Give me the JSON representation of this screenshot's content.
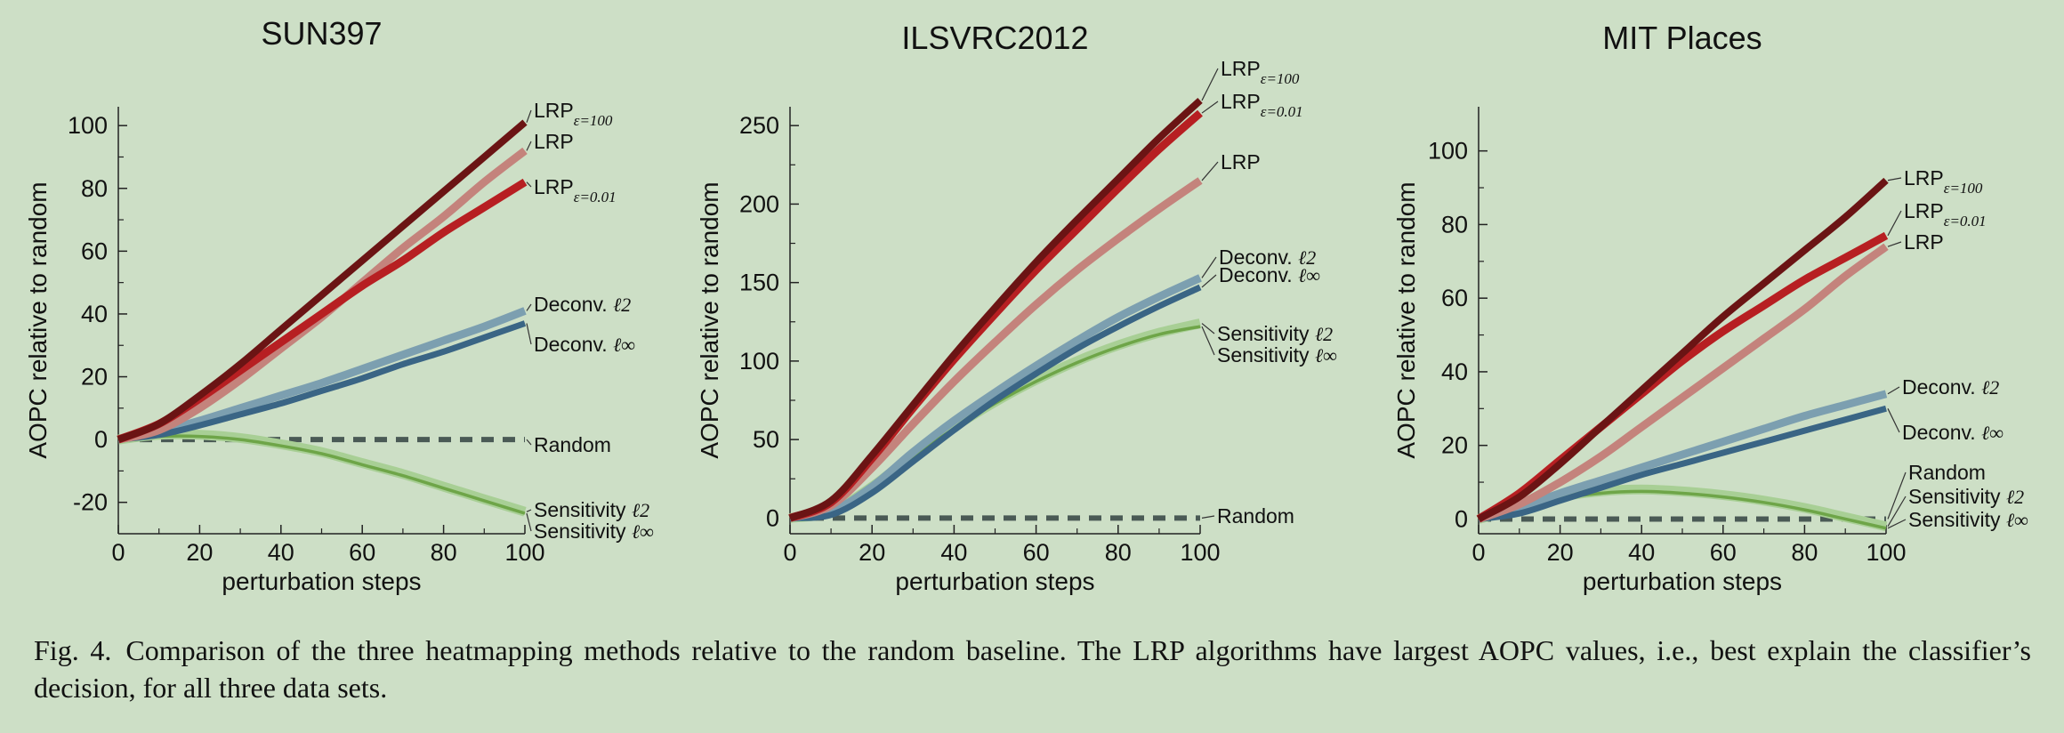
{
  "colors": {
    "lrp100": "#6b1414",
    "lrp001": "#b71f22",
    "lrp": "#c4837c",
    "deconv_l2": "#7c9fb0",
    "deconv_linf": "#3a6585",
    "sens_l2": "#a8cf95",
    "sens_linf": "#6ea548",
    "random": "#4a5a55"
  },
  "caption": {
    "figno": "Fig. 4.",
    "text": "Comparison of the three heatmapping methods relative to the random baseline. The LRP algorithms have largest AOPC values, i.e., best explain the classifier’s decision, for all three data sets."
  },
  "chart_data": [
    {
      "type": "line",
      "title": "SUN397",
      "xlabel": "perturbation steps",
      "ylabel": "AOPC relative to random",
      "xlim": [
        0,
        100
      ],
      "ylim": [
        -30,
        106
      ],
      "xticks": [
        "0",
        "20",
        "40",
        "60",
        "80",
        "100"
      ],
      "yticks": [
        "-20",
        "0",
        "20",
        "40",
        "60",
        "80",
        "100"
      ],
      "series": [
        {
          "key": "random",
          "name": "Random",
          "label": "Random",
          "x": [
            0,
            20,
            40,
            60,
            80,
            100
          ],
          "values": [
            0,
            0,
            0,
            0,
            0,
            0
          ],
          "dashed": true
        },
        {
          "key": "sens_l2",
          "name": "Sensitivity ℓ2",
          "label": "Sensitivity",
          "sub": "ℓ2",
          "x": [
            0,
            10,
            20,
            30,
            40,
            50,
            60,
            70,
            80,
            90,
            100
          ],
          "values": [
            0,
            1.5,
            1.5,
            0.5,
            -1.5,
            -4,
            -7.5,
            -11,
            -15,
            -19,
            -23
          ]
        },
        {
          "key": "sens_linf",
          "name": "Sensitivity ℓ∞",
          "label": "Sensitivity",
          "sub": "ℓ∞",
          "x": [
            0,
            10,
            20,
            30,
            40,
            50,
            60,
            70,
            80,
            90,
            100
          ],
          "values": [
            0,
            1,
            1,
            0,
            -2,
            -4.5,
            -8,
            -11.5,
            -15.5,
            -19.5,
            -23.5
          ]
        },
        {
          "key": "deconv_l2",
          "name": "Deconv. ℓ2",
          "label": "Deconv.",
          "sub": "ℓ2",
          "x": [
            0,
            10,
            20,
            30,
            40,
            50,
            60,
            70,
            80,
            90,
            100
          ],
          "values": [
            0,
            2.5,
            6,
            10,
            14,
            18,
            22.5,
            27,
            31.5,
            36,
            41
          ]
        },
        {
          "key": "deconv_linf",
          "name": "Deconv. ℓ∞",
          "label": "Deconv.",
          "sub": "ℓ∞",
          "x": [
            0,
            10,
            20,
            30,
            40,
            50,
            60,
            70,
            80,
            90,
            100
          ],
          "values": [
            0,
            1.5,
            4.5,
            8,
            11.5,
            15.5,
            19.5,
            24,
            28,
            32.5,
            37
          ]
        },
        {
          "key": "lrp001",
          "name": "LRP ε=0.01",
          "label": "LRP",
          "sub": "ε=0.01",
          "x": [
            0,
            10,
            20,
            30,
            40,
            50,
            60,
            70,
            80,
            90,
            100
          ],
          "values": [
            0,
            5,
            13,
            22,
            31,
            40,
            49,
            57,
            66,
            74,
            82
          ]
        },
        {
          "key": "lrp",
          "name": "LRP",
          "label": "LRP",
          "x": [
            0,
            10,
            20,
            30,
            40,
            50,
            60,
            70,
            80,
            90,
            100
          ],
          "values": [
            0,
            3,
            10,
            19,
            29,
            39,
            50,
            61,
            71,
            82,
            92
          ]
        },
        {
          "key": "lrp100",
          "name": "LRP ε=100",
          "label": "LRP",
          "sub": "ε=100",
          "x": [
            0,
            10,
            20,
            30,
            40,
            50,
            60,
            70,
            80,
            90,
            100
          ],
          "values": [
            0,
            5,
            14,
            24,
            35,
            46,
            57,
            68,
            79,
            90,
            101
          ]
        }
      ]
    },
    {
      "type": "line",
      "title": "ILSVRC2012",
      "xlabel": "perturbation steps",
      "ylabel": "AOPC relative to random",
      "xlim": [
        0,
        100
      ],
      "ylim": [
        -10,
        262
      ],
      "xticks": [
        "0",
        "20",
        "40",
        "60",
        "80",
        "100"
      ],
      "yticks": [
        "0",
        "50",
        "100",
        "150",
        "200",
        "250"
      ],
      "series": [
        {
          "key": "random",
          "name": "Random",
          "label": "Random",
          "x": [
            0,
            20,
            40,
            60,
            80,
            100
          ],
          "values": [
            0,
            0,
            0,
            0,
            0,
            0
          ],
          "dashed": true
        },
        {
          "key": "sens_l2",
          "name": "Sensitivity ℓ2",
          "label": "Sensitivity",
          "sub": "ℓ2",
          "x": [
            0,
            10,
            20,
            30,
            40,
            50,
            60,
            70,
            80,
            90,
            100
          ],
          "values": [
            0,
            4,
            20,
            40,
            58,
            74,
            88,
            100,
            110,
            118,
            124
          ]
        },
        {
          "key": "sens_linf",
          "name": "Sensitivity ℓ∞",
          "label": "Sensitivity",
          "sub": "ℓ∞",
          "x": [
            0,
            10,
            20,
            30,
            40,
            50,
            60,
            70,
            80,
            90,
            100
          ],
          "values": [
            0,
            3,
            19,
            39,
            57,
            73,
            87,
            99,
            109,
            117,
            122
          ]
        },
        {
          "key": "deconv_l2",
          "name": "Deconv. ℓ2",
          "label": "Deconv.",
          "sub": "ℓ2",
          "x": [
            0,
            10,
            20,
            30,
            40,
            50,
            60,
            70,
            80,
            90,
            100
          ],
          "values": [
            0,
            4,
            20,
            42,
            62,
            80,
            97,
            113,
            128,
            141,
            153
          ]
        },
        {
          "key": "deconv_linf",
          "name": "Deconv. ℓ∞",
          "label": "Deconv.",
          "sub": "ℓ∞",
          "x": [
            0,
            10,
            20,
            30,
            40,
            50,
            60,
            70,
            80,
            90,
            100
          ],
          "values": [
            0,
            2,
            16,
            36,
            56,
            75,
            92,
            108,
            122,
            135,
            147
          ]
        },
        {
          "key": "lrp",
          "name": "LRP",
          "label": "LRP",
          "x": [
            0,
            10,
            20,
            30,
            40,
            50,
            60,
            70,
            80,
            90,
            100
          ],
          "values": [
            0,
            8,
            32,
            60,
            87,
            112,
            136,
            158,
            178,
            197,
            215
          ]
        },
        {
          "key": "lrp001",
          "name": "LRP ε=0.01",
          "label": "LRP",
          "sub": "ε=0.01",
          "x": [
            0,
            10,
            20,
            30,
            40,
            50,
            60,
            70,
            80,
            90,
            100
          ],
          "values": [
            0,
            10,
            38,
            70,
            101,
            130,
            158,
            184,
            210,
            235,
            258
          ]
        },
        {
          "key": "lrp100",
          "name": "LRP ε=100",
          "label": "LRP",
          "sub": "ε=100",
          "x": [
            0,
            10,
            20,
            30,
            40,
            50,
            60,
            70,
            80,
            90,
            100
          ],
          "values": [
            0,
            11,
            40,
            72,
            104,
            134,
            163,
            190,
            216,
            242,
            266
          ]
        }
      ]
    },
    {
      "type": "line",
      "title": "MIT Places",
      "xlabel": "perturbation steps",
      "ylabel": "AOPC relative to random",
      "xlim": [
        0,
        100
      ],
      "ylim": [
        -4,
        112
      ],
      "xticks": [
        "0",
        "20",
        "40",
        "60",
        "80",
        "100"
      ],
      "yticks": [
        "0",
        "20",
        "40",
        "60",
        "80",
        "100"
      ],
      "series": [
        {
          "key": "random",
          "name": "Random",
          "label": "Random",
          "x": [
            0,
            20,
            40,
            60,
            80,
            100
          ],
          "values": [
            0,
            0,
            0,
            0,
            0,
            0
          ],
          "dashed": true
        },
        {
          "key": "sens_l2",
          "name": "Sensitivity ℓ2",
          "label": "Sensitivity",
          "sub": "ℓ2",
          "x": [
            0,
            10,
            20,
            30,
            40,
            50,
            60,
            70,
            80,
            90,
            100
          ],
          "values": [
            0,
            3,
            6,
            7.5,
            8,
            7.5,
            6.5,
            5,
            3,
            0.5,
            -2
          ]
        },
        {
          "key": "sens_linf",
          "name": "Sensitivity ℓ∞",
          "label": "Sensitivity",
          "sub": "ℓ∞",
          "x": [
            0,
            10,
            20,
            30,
            40,
            50,
            60,
            70,
            80,
            90,
            100
          ],
          "values": [
            0,
            2.5,
            5.5,
            7,
            7.5,
            7,
            6,
            4.5,
            2.5,
            0,
            -2.5
          ]
        },
        {
          "key": "deconv_l2",
          "name": "Deconv. ℓ2",
          "label": "Deconv.",
          "sub": "ℓ2",
          "x": [
            0,
            10,
            20,
            30,
            40,
            50,
            60,
            70,
            80,
            90,
            100
          ],
          "values": [
            0,
            3,
            7,
            10.5,
            14,
            17.5,
            21,
            24.5,
            28,
            31,
            34
          ]
        },
        {
          "key": "deconv_linf",
          "name": "Deconv. ℓ∞",
          "label": "Deconv.",
          "sub": "ℓ∞",
          "x": [
            0,
            10,
            20,
            30,
            40,
            50,
            60,
            70,
            80,
            90,
            100
          ],
          "values": [
            0,
            1.5,
            5,
            8.5,
            12,
            15,
            18,
            21,
            24,
            27,
            30
          ]
        },
        {
          "key": "lrp",
          "name": "LRP",
          "label": "LRP",
          "x": [
            0,
            10,
            20,
            30,
            40,
            50,
            60,
            70,
            80,
            90,
            100
          ],
          "values": [
            0,
            4,
            10,
            17,
            25,
            33,
            41,
            49,
            57,
            66,
            74
          ]
        },
        {
          "key": "lrp001",
          "name": "LRP ε=0.01",
          "label": "LRP",
          "sub": "ε=0.01",
          "x": [
            0,
            10,
            20,
            30,
            40,
            50,
            60,
            70,
            80,
            90,
            100
          ],
          "values": [
            0,
            7,
            16,
            25,
            34,
            43,
            51,
            58,
            65,
            71,
            77
          ]
        },
        {
          "key": "lrp100",
          "name": "LRP ε=100",
          "label": "LRP",
          "sub": "ε=100",
          "x": [
            0,
            10,
            20,
            30,
            40,
            50,
            60,
            70,
            80,
            90,
            100
          ],
          "values": [
            0,
            6,
            15,
            25,
            35,
            45,
            55,
            64,
            73,
            82,
            92
          ]
        }
      ]
    }
  ]
}
